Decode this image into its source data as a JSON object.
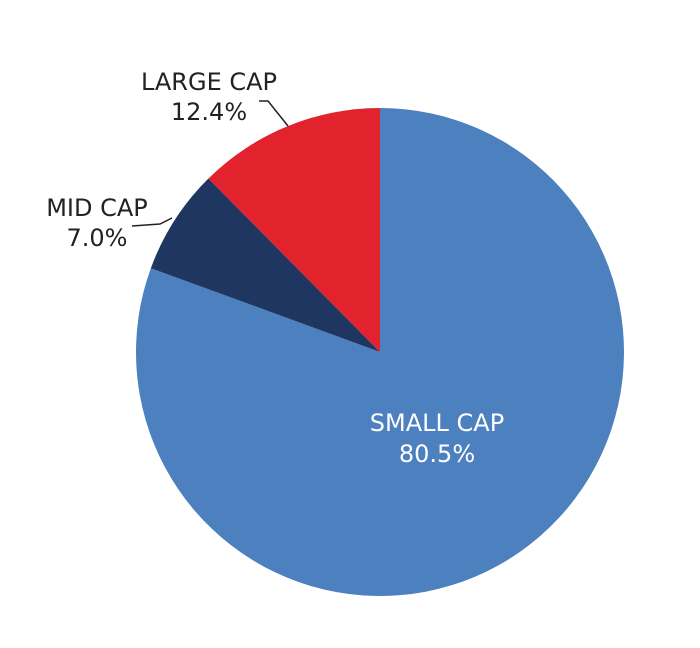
{
  "chart_data": {
    "type": "pie",
    "categories": [
      "SMALL CAP",
      "MID CAP",
      "LARGE CAP"
    ],
    "values": [
      80.5,
      7.0,
      12.4
    ],
    "value_labels": [
      "80.5%",
      "7.0%",
      "12.4%"
    ],
    "colors": [
      "#4d80bf",
      "#1f3660",
      "#e2232e"
    ],
    "start_angle_deg": 0,
    "direction": "clockwise",
    "title": ""
  }
}
